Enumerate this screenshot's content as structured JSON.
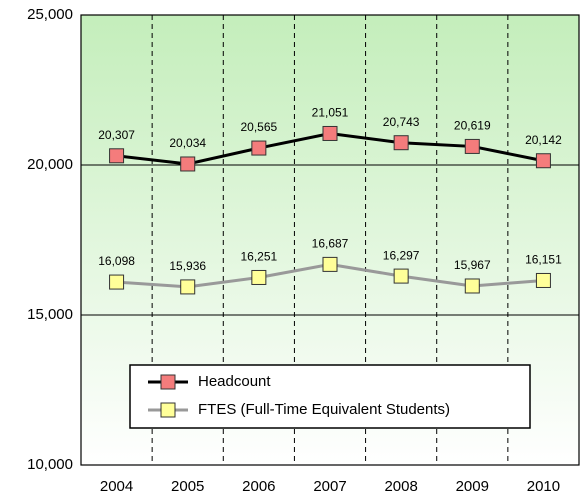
{
  "chart_data": {
    "type": "line",
    "categories": [
      "2004",
      "2005",
      "2006",
      "2007",
      "2008",
      "2009",
      "2010"
    ],
    "series": [
      {
        "name": "Headcount",
        "color": "#000000",
        "marker_color": "#f47c7c",
        "values": [
          20307,
          20034,
          20565,
          21051,
          20743,
          20619,
          20142
        ],
        "value_labels": [
          "20,307",
          "20,034",
          "20,565",
          "21,051",
          "20,743",
          "20,619",
          "20,142"
        ]
      },
      {
        "name": "FTES (Full-Time Equivalent Students)",
        "color": "#999999",
        "marker_color": "#ffff99",
        "values": [
          16098,
          15936,
          16251,
          16687,
          16297,
          15967,
          16151
        ],
        "value_labels": [
          "16,098",
          "15,936",
          "16,251",
          "16,687",
          "16,297",
          "15,967",
          "16,151"
        ]
      }
    ],
    "ylim": [
      10000,
      25000
    ],
    "yticks": [
      {
        "value": 10000,
        "label": "10,000"
      },
      {
        "value": 15000,
        "label": "15,000"
      },
      {
        "value": 20000,
        "label": "20,000"
      },
      {
        "value": 25000,
        "label": "25,000"
      }
    ],
    "grid": true,
    "legend": "lower center"
  }
}
